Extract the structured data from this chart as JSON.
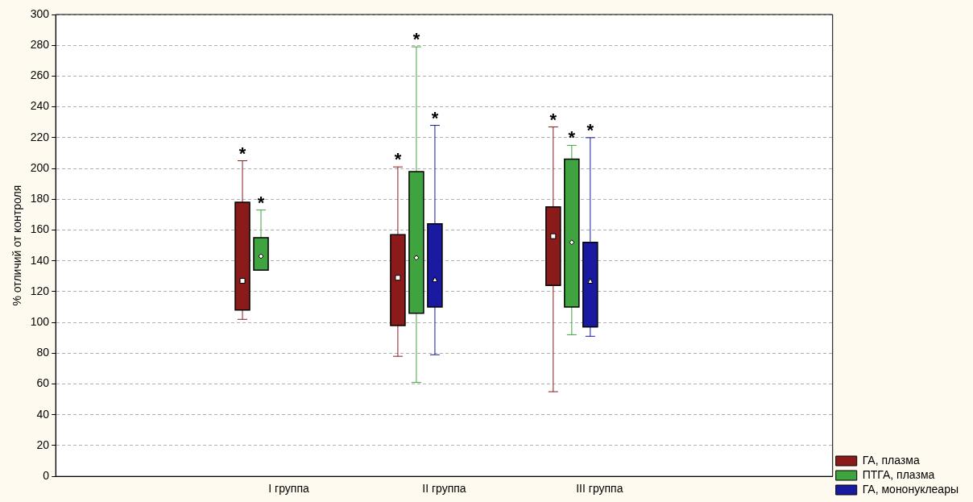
{
  "chart_data": {
    "type": "box",
    "ylabel": "% отличий от контроля",
    "categories": [
      null,
      "I группа",
      "II группа",
      "III группа",
      null
    ],
    "ylim": [
      0,
      300
    ],
    "yticks": [
      0,
      20,
      40,
      60,
      80,
      100,
      120,
      140,
      160,
      180,
      200,
      220,
      240,
      260,
      280,
      300
    ],
    "grid": "y",
    "legend": "bottom right",
    "series": [
      {
        "name": "ГА, плазма",
        "color": "#8b1a1a",
        "marker": "square",
        "boxes": [
          null,
          {
            "low": 102,
            "q1": 108,
            "median": 127,
            "q3": 178,
            "high": 205
          },
          {
            "low": 78,
            "q1": 98,
            "median": 129,
            "q3": 157,
            "high": 201
          },
          {
            "low": 55,
            "q1": 124,
            "median": 156,
            "q3": 175,
            "high": 227
          },
          null
        ]
      },
      {
        "name": "ПТГА, плазма",
        "color": "#3fa33f",
        "marker": "diamond",
        "boxes": [
          null,
          {
            "low": 134,
            "q1": 134,
            "median": 143,
            "q3": 155,
            "high": 173
          },
          {
            "low": 61,
            "q1": 106,
            "median": 142,
            "q3": 198,
            "high": 279
          },
          {
            "low": 92,
            "q1": 110,
            "median": 152,
            "q3": 206,
            "high": 215
          },
          null
        ]
      },
      {
        "name": "ГА, мононуклеары",
        "color": "#1a1aa0",
        "marker": "triangle",
        "boxes": [
          null,
          null,
          {
            "low": 79,
            "q1": 110,
            "median": 128,
            "q3": 164,
            "high": 228
          },
          {
            "low": 91,
            "q1": 97,
            "median": 127,
            "q3": 152,
            "high": 220
          },
          null
        ]
      }
    ],
    "annotations": [
      "*",
      "*",
      "*",
      "*",
      "*",
      "*",
      "*",
      "*"
    ]
  }
}
